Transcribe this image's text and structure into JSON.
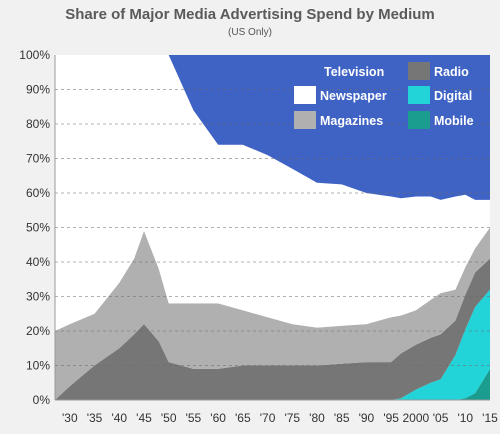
{
  "chart_data": {
    "type": "area",
    "stacking": "percent",
    "title": "Share of Major Media Advertising Spend by Medium",
    "subtitle": "(US Only)",
    "ylim": [
      0,
      100
    ],
    "yticks": [
      "0%",
      "10%",
      "20%",
      "30%",
      "40%",
      "50%",
      "60%",
      "70%",
      "80%",
      "90%",
      "100%"
    ],
    "xlim": [
      1927,
      2015
    ],
    "xticks": [
      {
        "x": 1930,
        "label": "'30"
      },
      {
        "x": 1935,
        "label": "'35"
      },
      {
        "x": 1940,
        "label": "'40"
      },
      {
        "x": 1945,
        "label": "'45"
      },
      {
        "x": 1950,
        "label": "'50"
      },
      {
        "x": 1955,
        "label": "'55"
      },
      {
        "x": 1960,
        "label": "'60"
      },
      {
        "x": 1965,
        "label": "'65"
      },
      {
        "x": 1970,
        "label": "'70"
      },
      {
        "x": 1975,
        "label": "'75"
      },
      {
        "x": 1980,
        "label": "'80"
      },
      {
        "x": 1985,
        "label": "'85"
      },
      {
        "x": 1990,
        "label": "'90"
      },
      {
        "x": 1995,
        "label": "'95"
      },
      {
        "x": 2000,
        "label": "2000"
      },
      {
        "x": 2005,
        "label": "'05"
      },
      {
        "x": 2010,
        "label": "'10"
      },
      {
        "x": 2015,
        "label": "'15"
      }
    ],
    "grid": true,
    "legend_position": "top-right",
    "x": [
      1927,
      1930,
      1935,
      1940,
      1943,
      1945,
      1948,
      1950,
      1955,
      1960,
      1965,
      1970,
      1975,
      1980,
      1985,
      1990,
      1995,
      1997,
      2000,
      2003,
      2005,
      2008,
      2010,
      2012,
      2015
    ],
    "series": [
      {
        "name": "Mobile",
        "color": "#1a9c8f",
        "values": [
          0,
          0,
          0,
          0,
          0,
          0,
          0,
          0,
          0,
          0,
          0,
          0,
          0,
          0,
          0,
          0,
          0,
          0,
          0,
          0,
          0,
          0,
          0.5,
          2,
          9
        ]
      },
      {
        "name": "Digital",
        "color": "#22d3d8",
        "values": [
          0,
          0,
          0,
          0,
          0,
          0,
          0,
          0,
          0,
          0,
          0,
          0,
          0,
          0,
          0,
          0,
          0,
          0.5,
          3,
          5,
          6,
          13,
          20,
          25,
          23
        ]
      },
      {
        "name": "Radio",
        "color": "#767676",
        "values": [
          0,
          4,
          10,
          15,
          19,
          22,
          17,
          11,
          9,
          9,
          10,
          10,
          10,
          10,
          10.5,
          11,
          11,
          13,
          13,
          13,
          13,
          10,
          10,
          10,
          9
        ]
      },
      {
        "name": "Magazines",
        "color": "#b0b0b0",
        "values": [
          20,
          18,
          15,
          19,
          22,
          27,
          21,
          17,
          19,
          19,
          16,
          14,
          12,
          11,
          11,
          11,
          13,
          11,
          10,
          11,
          12,
          9,
          8,
          7,
          9
        ]
      },
      {
        "name": "Newspaper",
        "color": "#ffffff",
        "values": [
          80,
          78,
          75,
          66,
          59,
          51,
          62,
          72,
          56,
          46,
          48,
          47,
          45,
          42,
          41,
          38,
          35,
          34,
          33,
          30,
          27,
          27,
          21,
          14,
          8
        ]
      },
      {
        "name": "Television",
        "color": "#3f63c5",
        "values": [
          0,
          0,
          0,
          0,
          0,
          0,
          0,
          0,
          16,
          26,
          26,
          29,
          33,
          37,
          37.5,
          40,
          41,
          41.5,
          41,
          41,
          42,
          41,
          40.5,
          42,
          42
        ]
      }
    ]
  }
}
